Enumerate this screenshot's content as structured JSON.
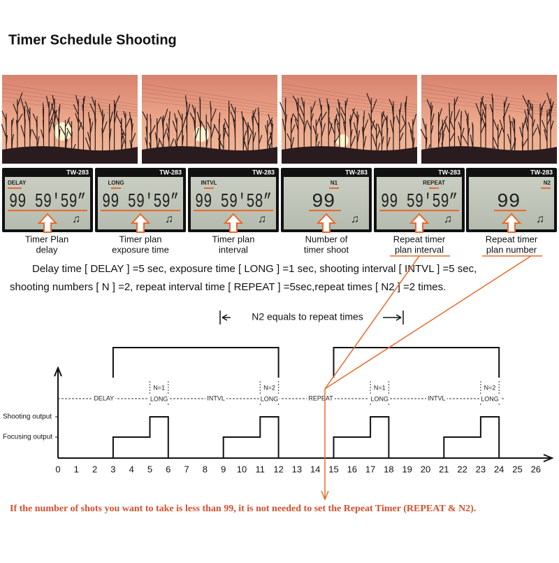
{
  "title": "Timer Schedule Shooting",
  "lcd_panels": [
    {
      "model": "TW-283",
      "label": "DELAY",
      "reading": "99 59'59”",
      "caption": [
        "Timer Plan",
        "delay"
      ]
    },
    {
      "model": "TW-283",
      "label": "LONG",
      "reading": "99 59'59”",
      "caption": [
        "Timer plan",
        "exposure time"
      ]
    },
    {
      "model": "TW-283",
      "label": "INTVL",
      "reading": "99 59'58”",
      "caption": [
        "Timer plan",
        "interval"
      ]
    },
    {
      "model": "TW-283",
      "label": "N1",
      "reading": "99",
      "caption": [
        "Number of",
        "timer shoot"
      ]
    },
    {
      "model": "TW-283",
      "label": "REPEAT",
      "reading": "99 59'59”",
      "caption": [
        "Repeat timer",
        "plan interval"
      ]
    },
    {
      "model": "TW-283",
      "label": "N2",
      "reading": "99",
      "caption": [
        "Repeat timer",
        "plan number"
      ]
    }
  ],
  "description": [
    "Delay time [ DELAY ] =5 sec, exposure time [ LONG ] =1 sec, shooting interval [ INTVL ] =5 sec,",
    "shooting numbers [ N ] =2, repeat interval time [ REPEAT ] =5sec,repeat times [ N2 ] =2 times."
  ],
  "timeline": {
    "bracket_label": "N2 equals to repeat times",
    "segments": [
      "DELAY",
      "N=1",
      "LONG",
      "INTVL",
      "N=2",
      "LONG",
      "REPEAT",
      "N=1",
      "LONG",
      "INTVL",
      "N=2",
      "LONG"
    ],
    "y_labels": [
      "Shooting output",
      "Focusing output"
    ],
    "x_ticks": [
      0,
      1,
      2,
      3,
      4,
      5,
      6,
      7,
      8,
      9,
      10,
      11,
      12,
      13,
      14,
      15,
      16,
      17,
      18,
      19,
      20,
      21,
      22,
      23,
      24,
      25,
      26
    ]
  },
  "footer": "If the number of shots you want to take is less than 99, it is not needed to set the Repeat Timer (REPEAT & N2)."
}
